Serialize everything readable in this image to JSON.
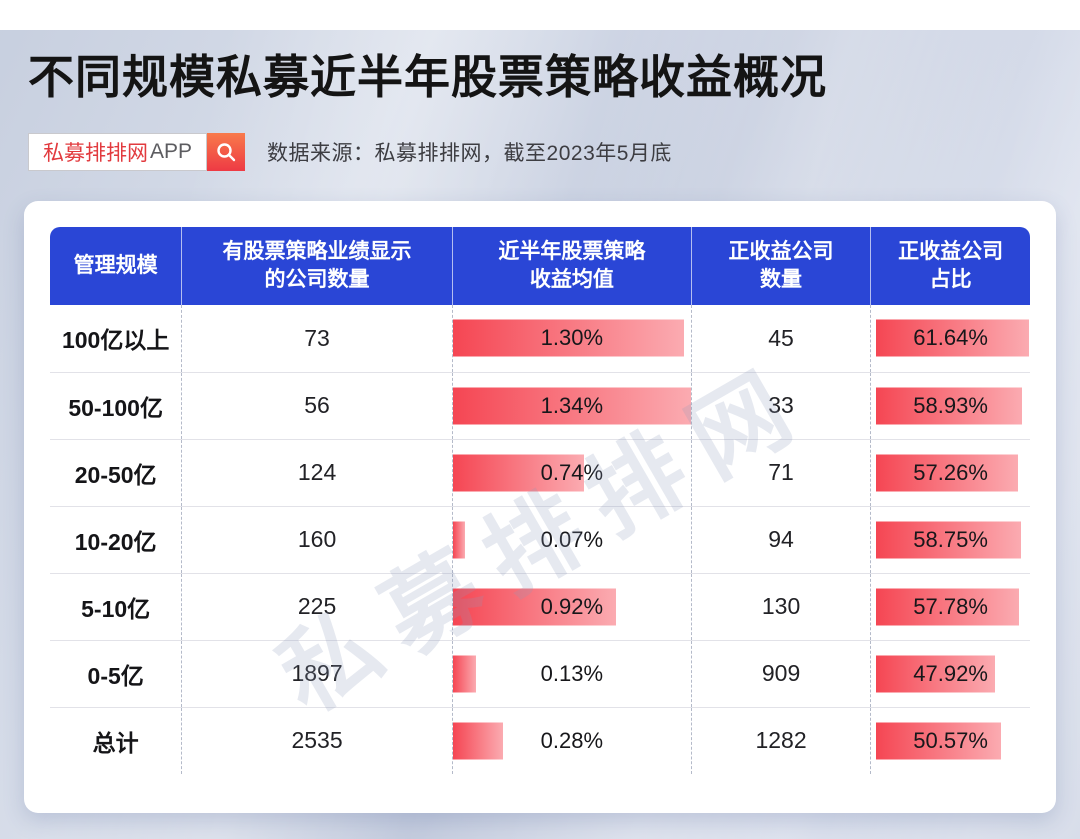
{
  "page": {
    "title": "不同规模私募近半年股票策略收益概况",
    "badge": {
      "brand": "私募排排网",
      "suffix": "APP"
    },
    "search_icon": "magnifier-icon",
    "source": "数据来源：私募排排网，截至2023年5月底",
    "watermark": "私募排排网"
  },
  "colors": {
    "header_blue": "#2a46d6",
    "bar_red": "#f54653",
    "bar_pink": "#fbabb1",
    "brand_red": "#e23a3e",
    "icon_red_top": "#f87a4b",
    "icon_red_bottom": "#ee3a44"
  },
  "chart_data": {
    "type": "table",
    "title": "不同规模私募近半年股票策略收益概况",
    "columns": [
      "管理规模",
      "有股票策略业绩显示\n的公司数量",
      "近半年股票策略\n收益均值",
      "正收益公司\n数量",
      "正收益公司\n占比"
    ],
    "bar_columns": [
      "近半年股票策略收益均值",
      "正收益公司占比"
    ],
    "rows": [
      {
        "scale": "100亿以上",
        "companies": "73",
        "avg_return": "1.30%",
        "avg_return_value": 1.3,
        "positive_count": "45",
        "positive_ratio": "61.64%",
        "positive_ratio_value": 61.64
      },
      {
        "scale": "50-100亿",
        "companies": "56",
        "avg_return": "1.34%",
        "avg_return_value": 1.34,
        "positive_count": "33",
        "positive_ratio": "58.93%",
        "positive_ratio_value": 58.93
      },
      {
        "scale": "20-50亿",
        "companies": "124",
        "avg_return": "0.74%",
        "avg_return_value": 0.74,
        "positive_count": "71",
        "positive_ratio": "57.26%",
        "positive_ratio_value": 57.26
      },
      {
        "scale": "10-20亿",
        "companies": "160",
        "avg_return": "0.07%",
        "avg_return_value": 0.07,
        "positive_count": "94",
        "positive_ratio": "58.75%",
        "positive_ratio_value": 58.75
      },
      {
        "scale": "5-10亿",
        "companies": "225",
        "avg_return": "0.92%",
        "avg_return_value": 0.92,
        "positive_count": "130",
        "positive_ratio": "57.78%",
        "positive_ratio_value": 57.78
      },
      {
        "scale": "0-5亿",
        "companies": "1897",
        "avg_return": "0.13%",
        "avg_return_value": 0.13,
        "positive_count": "909",
        "positive_ratio": "47.92%",
        "positive_ratio_value": 47.92
      },
      {
        "scale": "总计",
        "companies": "2535",
        "avg_return": "0.28%",
        "avg_return_value": 0.28,
        "positive_count": "1282",
        "positive_ratio": "50.57%",
        "positive_ratio_value": 50.57
      }
    ]
  }
}
